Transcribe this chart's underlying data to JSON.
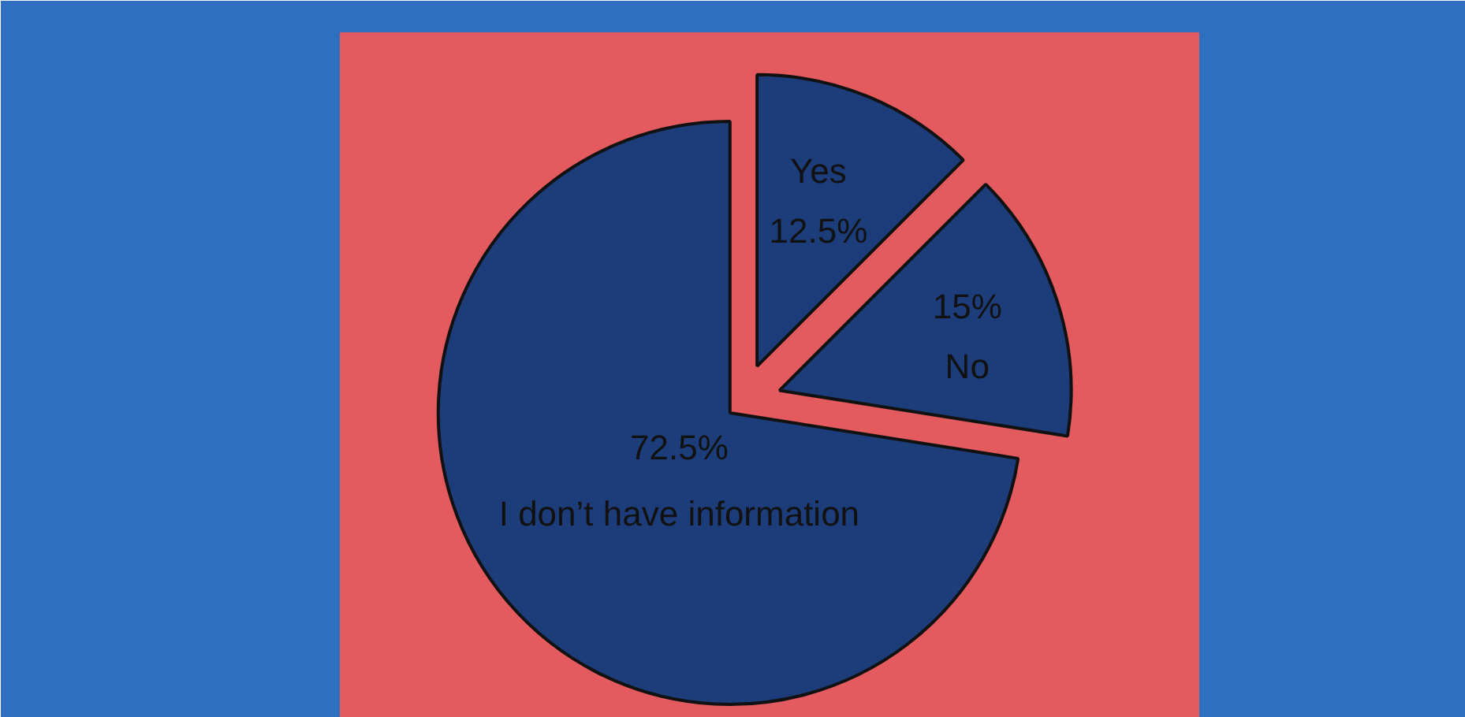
{
  "chart_data": {
    "type": "pie",
    "categories": [
      "Yes",
      "No",
      "I don’t have information"
    ],
    "values": [
      12.5,
      15,
      72.5
    ],
    "value_labels": [
      "12.5%",
      "15%",
      "72.5%"
    ],
    "colors": [
      "#1c3d7a",
      "#1c3d7a",
      "#1c3d7a"
    ]
  }
}
